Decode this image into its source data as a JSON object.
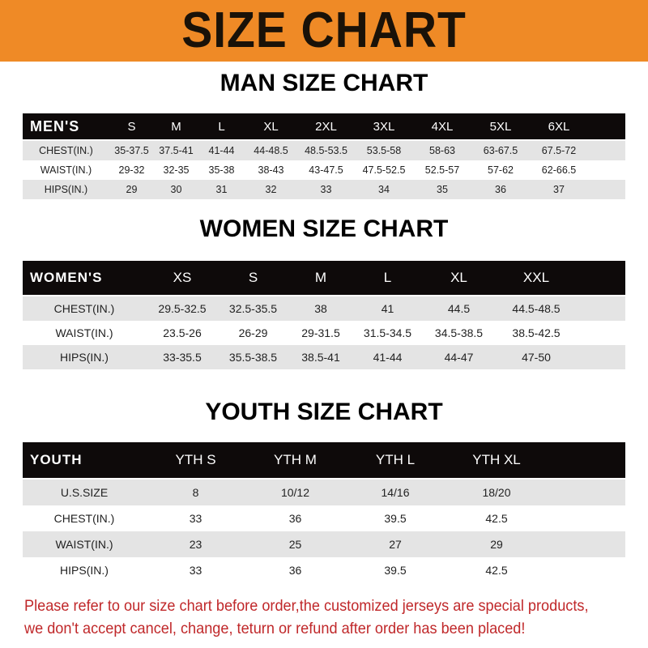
{
  "banner": {
    "title": "SIZE CHART",
    "color": "#ef8a26"
  },
  "men": {
    "title": "MAN SIZE CHART",
    "headers": [
      "MEN'S",
      "S",
      "M",
      "L",
      "XL",
      "2XL",
      "3XL",
      "4XL",
      "5XL",
      "6XL"
    ],
    "rows": [
      [
        "CHEST(IN.)",
        "35-37.5",
        "37.5-41",
        "41-44",
        "44-48.5",
        "48.5-53.5",
        "53.5-58",
        "58-63",
        "63-67.5",
        "67.5-72"
      ],
      [
        "WAIST(IN.)",
        "29-32",
        "32-35",
        "35-38",
        "38-43",
        "43-47.5",
        "47.5-52.5",
        "52.5-57",
        "57-62",
        "62-66.5"
      ],
      [
        "HIPS(IN.)",
        "29",
        "30",
        "31",
        "32",
        "33",
        "34",
        "35",
        "36",
        "37"
      ]
    ]
  },
  "women": {
    "title": "WOMEN SIZE CHART",
    "headers": [
      "WOMEN'S",
      "XS",
      "S",
      "M",
      "L",
      "XL",
      "XXL"
    ],
    "rows": [
      [
        "CHEST(IN.)",
        "29.5-32.5",
        "32.5-35.5",
        "38",
        "41",
        "44.5",
        "44.5-48.5"
      ],
      [
        "WAIST(IN.)",
        "23.5-26",
        "26-29",
        "29-31.5",
        "31.5-34.5",
        "34.5-38.5",
        "38.5-42.5"
      ],
      [
        "HIPS(IN.)",
        "33-35.5",
        "35.5-38.5",
        "38.5-41",
        "41-44",
        "44-47",
        "47-50"
      ]
    ]
  },
  "youth": {
    "title": "YOUTH SIZE CHART",
    "headers": [
      "YOUTH",
      "YTH S",
      "YTH M",
      "YTH L",
      "YTH XL"
    ],
    "rows": [
      [
        "U.S.SIZE",
        "8",
        "10/12",
        "14/16",
        "18/20"
      ],
      [
        "CHEST(IN.)",
        "33",
        "36",
        "39.5",
        "42.5"
      ],
      [
        "WAIST(IN.)",
        "23",
        "25",
        "27",
        "29"
      ],
      [
        "HIPS(IN.)",
        "33",
        "36",
        "39.5",
        "42.5"
      ]
    ]
  },
  "footer": {
    "line1": "Please refer to our size chart before order,the customized jerseys are special products,",
    "line2": "we don't accept cancel, change, teturn or refund after order has been placed!",
    "color": "#c0282a"
  }
}
